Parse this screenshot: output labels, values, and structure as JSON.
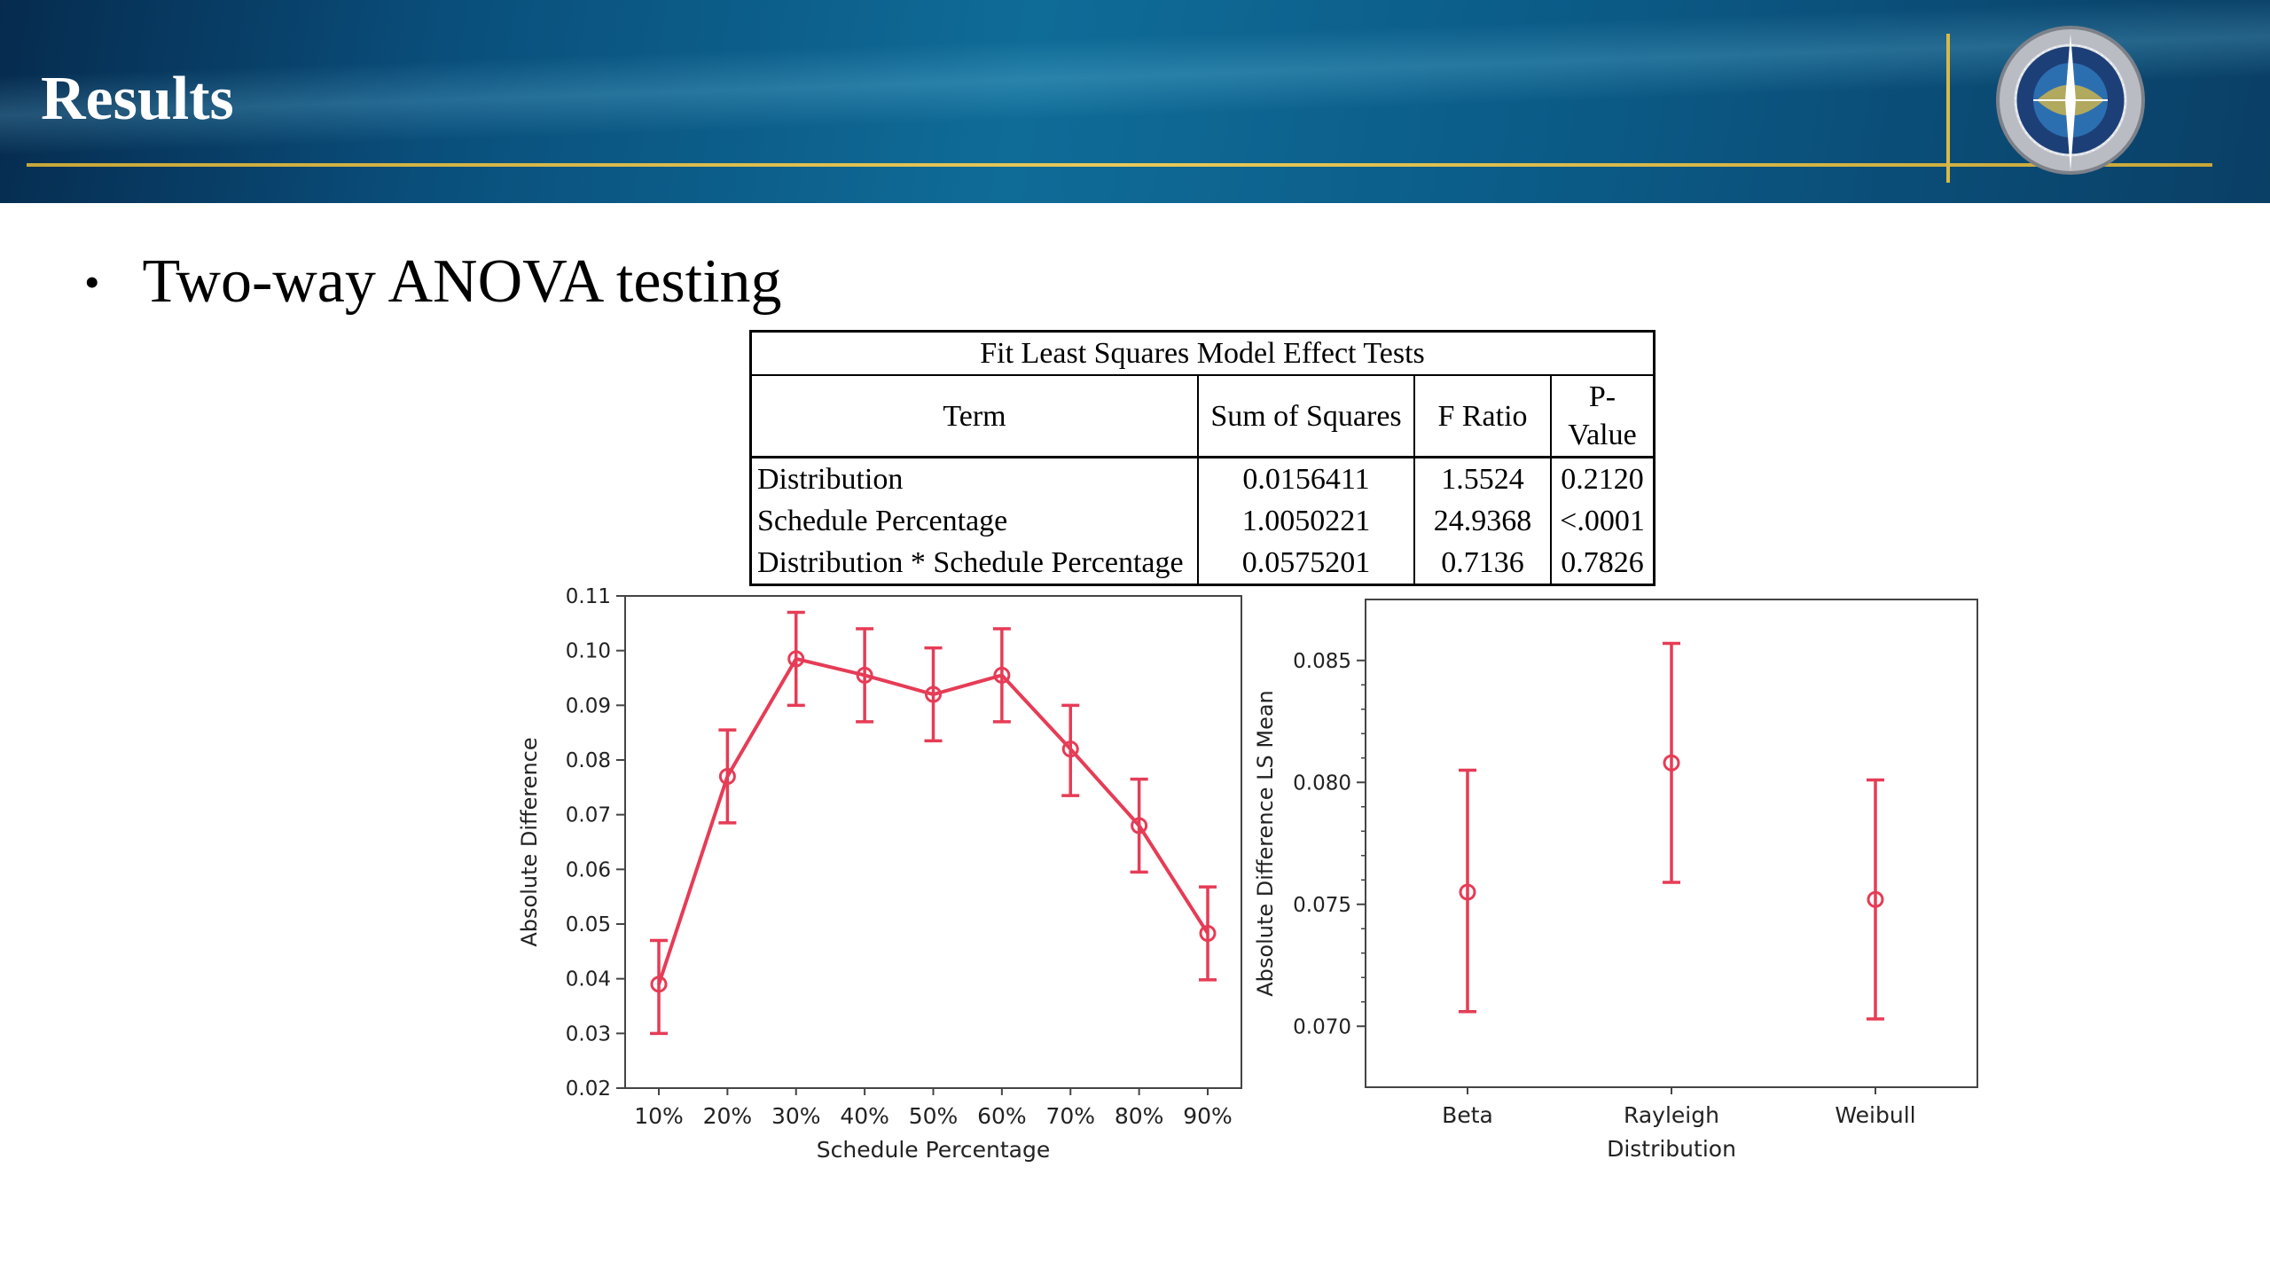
{
  "header": {
    "title": "Results"
  },
  "bullet": {
    "text": "Two-way ANOVA testing"
  },
  "table": {
    "caption": "Fit Least Squares Model Effect Tests",
    "columns": [
      "Term",
      "Sum of Squares",
      "F Ratio",
      "P-Value"
    ],
    "rows": [
      {
        "term": "Distribution",
        "ss": "0.0156411",
        "f": "1.5524",
        "p": "0.2120"
      },
      {
        "term": "Schedule Percentage",
        "ss": "1.0050221",
        "f": "24.9368",
        "p": "<.0001"
      },
      {
        "term": "Distribution * Schedule Percentage",
        "ss": "0.0575201",
        "f": "0.7136",
        "p": "0.7826"
      }
    ]
  },
  "colors": {
    "series": "#e63c56",
    "header_gold": "#d9b84a"
  },
  "chart_data": [
    {
      "type": "line",
      "title": "",
      "xlabel": "Schedule Percentage",
      "ylabel": "Absolute Difference",
      "categories": [
        "10%",
        "20%",
        "30%",
        "40%",
        "50%",
        "60%",
        "70%",
        "80%",
        "90%"
      ],
      "values": [
        0.039,
        0.077,
        0.0985,
        0.0955,
        0.092,
        0.0955,
        0.082,
        0.068,
        0.0483
      ],
      "error_low": [
        0.03,
        0.0685,
        0.09,
        0.087,
        0.0835,
        0.087,
        0.0735,
        0.0595,
        0.0398
      ],
      "error_high": [
        0.047,
        0.0855,
        0.107,
        0.104,
        0.1005,
        0.104,
        0.09,
        0.0765,
        0.0568
      ],
      "ylim": [
        0.02,
        0.11
      ],
      "yticks": [
        "0.02",
        "0.03",
        "0.04",
        "0.05",
        "0.06",
        "0.07",
        "0.08",
        "0.09",
        "0.10",
        "0.11"
      ],
      "grid": false
    },
    {
      "type": "scatter",
      "title": "",
      "xlabel": "Distribution",
      "ylabel": "Absolute Difference LS Mean",
      "categories": [
        "Beta",
        "Rayleigh",
        "Weibull"
      ],
      "values": [
        0.0755,
        0.0808,
        0.0752
      ],
      "error_low": [
        0.0706,
        0.0759,
        0.0703
      ],
      "error_high": [
        0.0805,
        0.0857,
        0.0801
      ],
      "ylim": [
        0.0675,
        0.0875
      ],
      "yticks": [
        "0.070",
        "0.075",
        "0.080",
        "0.085"
      ],
      "grid": false
    }
  ]
}
